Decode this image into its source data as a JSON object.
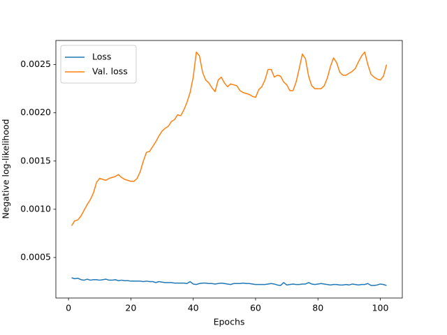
{
  "chart_data": {
    "type": "line",
    "xlabel": "Epochs",
    "ylabel": "Negative log-likelihood",
    "x": [
      1,
      2,
      3,
      4,
      5,
      6,
      7,
      8,
      9,
      10,
      11,
      12,
      13,
      14,
      15,
      16,
      17,
      18,
      19,
      20,
      21,
      22,
      23,
      24,
      25,
      26,
      27,
      28,
      29,
      30,
      31,
      32,
      33,
      34,
      35,
      36,
      37,
      38,
      39,
      40,
      41,
      42,
      43,
      44,
      45,
      46,
      47,
      48,
      49,
      50,
      51,
      52,
      53,
      54,
      55,
      56,
      57,
      58,
      59,
      60,
      61,
      62,
      63,
      64,
      65,
      66,
      67,
      68,
      69,
      70,
      71,
      72,
      73,
      74,
      75,
      76,
      77,
      78,
      79,
      80,
      81,
      82,
      83,
      84,
      85,
      86,
      87,
      88,
      89,
      90,
      91,
      92,
      93,
      94,
      95,
      96,
      97,
      98,
      99,
      100,
      101,
      102
    ],
    "series": [
      {
        "name": "Loss",
        "color": "#1f77b4",
        "values": [
          0.00029,
          0.00028,
          0.000285,
          0.00027,
          0.000265,
          0.000275,
          0.000265,
          0.00027,
          0.00027,
          0.000265,
          0.00027,
          0.000275,
          0.000265,
          0.000265,
          0.00027,
          0.00026,
          0.000265,
          0.00026,
          0.00026,
          0.000255,
          0.000255,
          0.000255,
          0.000255,
          0.00025,
          0.000255,
          0.00025,
          0.00025,
          0.00024,
          0.00025,
          0.000245,
          0.00024,
          0.00024,
          0.00024,
          0.000235,
          0.000235,
          0.000235,
          0.000235,
          0.00023,
          0.00025,
          0.000225,
          0.00022,
          0.00023,
          0.000235,
          0.000235,
          0.00023,
          0.00023,
          0.000225,
          0.00023,
          0.000235,
          0.00023,
          0.000225,
          0.00022,
          0.00023,
          0.00023,
          0.00023,
          0.000235,
          0.00023,
          0.00023,
          0.000225,
          0.00022,
          0.00022,
          0.00022,
          0.00022,
          0.000225,
          0.00023,
          0.000225,
          0.000215,
          0.00021,
          0.00024,
          0.000215,
          0.00022,
          0.000225,
          0.00022,
          0.00022,
          0.000225,
          0.000225,
          0.00024,
          0.000225,
          0.00022,
          0.000225,
          0.00023,
          0.000225,
          0.00022,
          0.000215,
          0.00022,
          0.00022,
          0.000215,
          0.000215,
          0.00022,
          0.000215,
          0.000225,
          0.00022,
          0.000215,
          0.00022,
          0.00022,
          0.00023,
          0.00021,
          0.00021,
          0.000215,
          0.000225,
          0.00022,
          0.00021
        ]
      },
      {
        "name": "Val. loss",
        "color": "#ff7f0e",
        "values": [
          0.00083,
          0.00088,
          0.00089,
          0.00093,
          0.00099,
          0.00105,
          0.0011,
          0.00117,
          0.00128,
          0.00132,
          0.00131,
          0.0013,
          0.00132,
          0.00133,
          0.00134,
          0.00136,
          0.00133,
          0.00131,
          0.0013,
          0.00129,
          0.00129,
          0.00132,
          0.00139,
          0.0015,
          0.00159,
          0.0016,
          0.00165,
          0.0017,
          0.00176,
          0.00181,
          0.00184,
          0.00186,
          0.00191,
          0.00193,
          0.00198,
          0.00197,
          0.00203,
          0.00211,
          0.00221,
          0.00237,
          0.00263,
          0.00259,
          0.00242,
          0.00234,
          0.00231,
          0.00226,
          0.00222,
          0.00234,
          0.00237,
          0.00231,
          0.00227,
          0.0023,
          0.00229,
          0.00228,
          0.00223,
          0.00221,
          0.0022,
          0.00219,
          0.00217,
          0.00216,
          0.00224,
          0.00227,
          0.00234,
          0.00245,
          0.00245,
          0.00237,
          0.00239,
          0.00238,
          0.00232,
          0.00229,
          0.00223,
          0.00223,
          0.00232,
          0.00246,
          0.00261,
          0.00256,
          0.00238,
          0.00228,
          0.00225,
          0.00225,
          0.00225,
          0.00228,
          0.00236,
          0.00248,
          0.00257,
          0.00252,
          0.00242,
          0.00239,
          0.00239,
          0.00241,
          0.00243,
          0.00246,
          0.00253,
          0.00259,
          0.00263,
          0.0025,
          0.0024,
          0.00237,
          0.00235,
          0.00234,
          0.00238,
          0.0025
        ]
      }
    ],
    "xlim": [
      -4.05,
      107.05
    ],
    "xticks": [
      0,
      20,
      40,
      60,
      80,
      100
    ],
    "ylim": [
      8e-05,
      0.00275
    ],
    "yticks": [
      0.0005,
      {
        "value": 0.001,
        "label": "0.0010"
      },
      0.0015,
      {
        "value": 0.002,
        "label": "0.0020"
      },
      0.0025
    ],
    "grid": false,
    "legend": "upper left"
  }
}
